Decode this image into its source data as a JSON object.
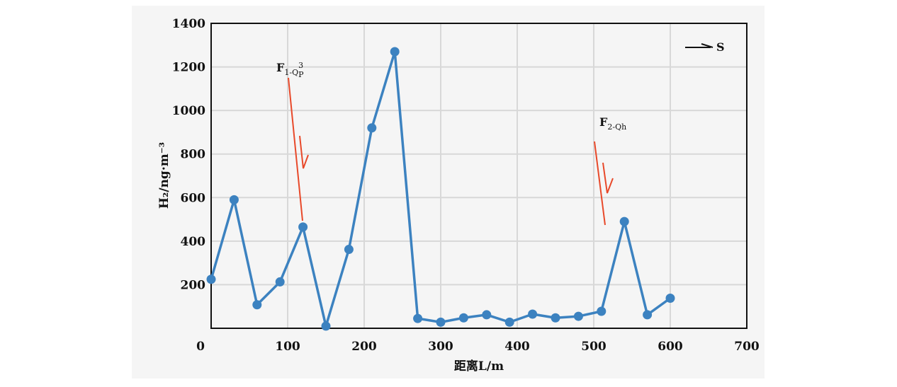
{
  "chart_data": {
    "type": "line",
    "xlabel": "距离L/m",
    "ylabel": "H₂/ng·m⁻³",
    "xlim": [
      0,
      700
    ],
    "ylim": [
      0,
      1400
    ],
    "xticks": [
      "0",
      "100",
      "200",
      "300",
      "400",
      "500",
      "600",
      "700"
    ],
    "yticks": [
      "200",
      "400",
      "600",
      "800",
      "1000",
      "1200",
      "1400"
    ],
    "grid": true,
    "line_color": "#3c82c0",
    "fault_color": "#e8492a",
    "direction_label": "S",
    "series": [
      {
        "x": [
          0,
          30,
          60,
          90,
          120,
          150,
          180,
          210,
          240,
          270,
          300,
          330,
          360,
          390,
          420,
          450,
          480,
          510,
          540,
          570,
          600
        ],
        "values": [
          225,
          590,
          108,
          213,
          465,
          10,
          362,
          920,
          1270,
          45,
          28,
          48,
          62,
          28,
          65,
          48,
          55,
          78,
          490,
          62,
          138
        ]
      }
    ],
    "annotations": [
      {
        "label": "F",
        "sub": "1-Q",
        "sup": "3",
        "sub2": "P"
      },
      {
        "label": "F",
        "sub": "2-Qh"
      }
    ]
  }
}
